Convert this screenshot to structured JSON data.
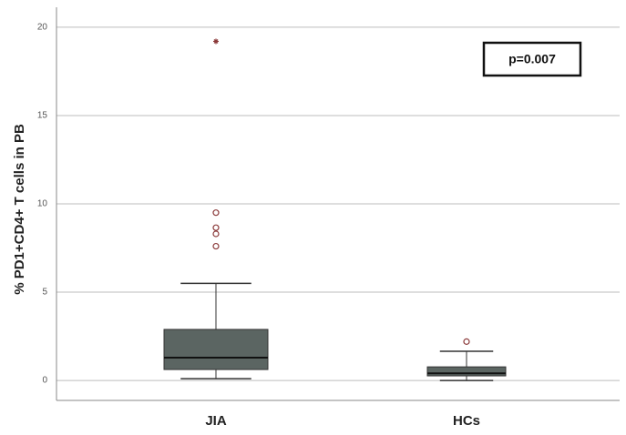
{
  "chart_data": {
    "type": "box",
    "y_label": "% PD1+CD4+ T cells in PB",
    "annotation": "p=0.007",
    "categories": [
      "JIA",
      "HCs"
    ],
    "color": "#5b6562",
    "outlier_color": "#8b3a3a",
    "boxes": [
      {
        "whislo": 0.1,
        "q1": 0.62,
        "med": 1.29,
        "q3": 2.89,
        "whishi": 5.5,
        "outliers": [
          9.5,
          8.65,
          8.3,
          7.6
        ],
        "extremes": [
          19.2
        ]
      },
      {
        "whislo": 0.0,
        "q1": 0.26,
        "med": 0.4,
        "q3": 0.77,
        "whishi": 1.65,
        "outliers": [
          2.2
        ],
        "extremes": []
      }
    ],
    "ylim": [
      -1.13,
      21.13
    ],
    "yticks": [
      0,
      5,
      10,
      15,
      20
    ],
    "grid": true
  }
}
